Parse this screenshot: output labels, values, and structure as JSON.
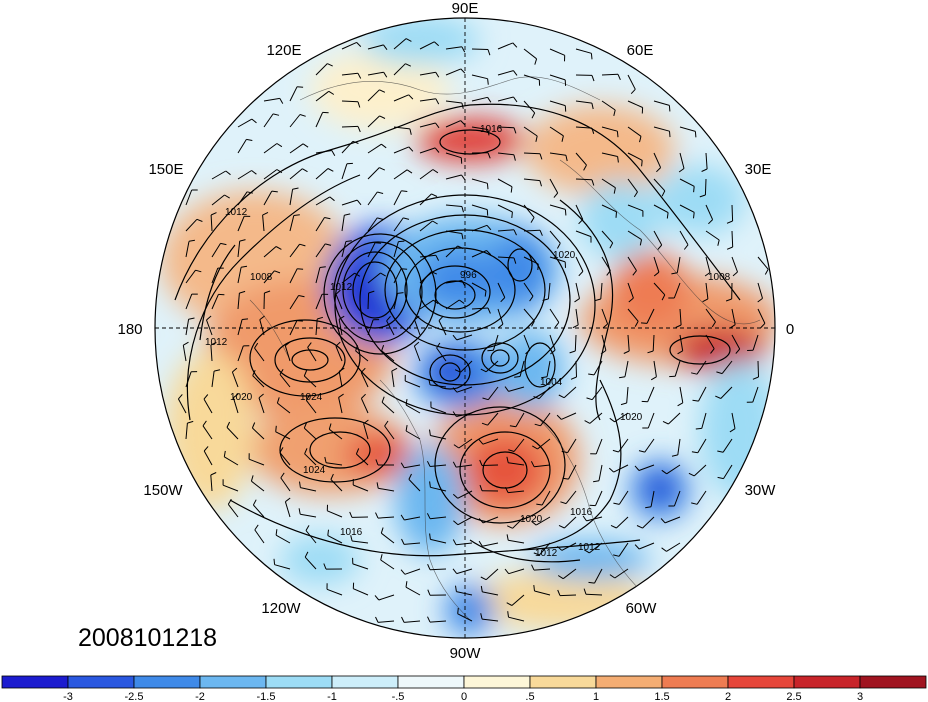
{
  "timestamp": "2008101218",
  "longitude_labels": [
    "90E",
    "60E",
    "120E",
    "30E",
    "150E",
    "0",
    "180",
    "30W",
    "150W",
    "60W",
    "120W",
    "90W"
  ],
  "contour_labels": [
    "1016",
    "1020",
    "1024",
    "1008",
    "1012",
    "1004",
    "996"
  ],
  "colorbar": {
    "tick_labels": [
      "-3",
      "-2.5",
      "-2",
      "-1.5",
      "-1",
      "-.5",
      "0",
      ".5",
      "1",
      "1.5",
      "2",
      "2.5",
      "3"
    ],
    "colors": [
      "#1c1ccf",
      "#2a58e0",
      "#3f8ae8",
      "#6cb7f0",
      "#9ddcf5",
      "#cdeefa",
      "#eef8fb",
      "#fdf6d8",
      "#f8d99a",
      "#f4ad73",
      "#ee7c52",
      "#e6463a",
      "#c8242a",
      "#a01420"
    ]
  },
  "colors": {
    "background": "#ffffff",
    "land_outline": "#222222"
  }
}
